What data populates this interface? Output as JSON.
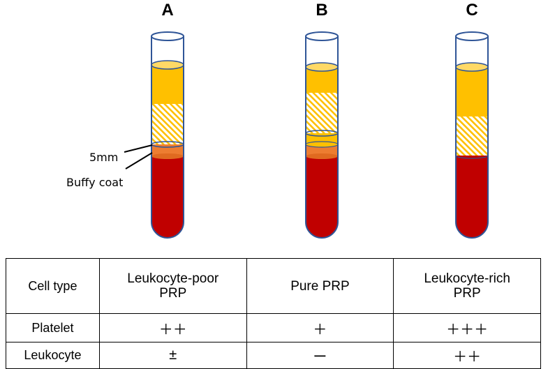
{
  "tubes": [
    {
      "label": "A",
      "layers": [
        "plasma",
        "platelet-hatched",
        "buffy-coat",
        "red-cells"
      ]
    },
    {
      "label": "B",
      "layers": [
        "plasma",
        "platelet-hatched",
        "plasma",
        "buffy-coat",
        "red-cells"
      ]
    },
    {
      "label": "C",
      "layers": [
        "plasma",
        "platelet-hatched",
        "red-cells"
      ]
    }
  ],
  "annotations": {
    "five_mm": "5mm",
    "buffy_coat": "Buffy coat"
  },
  "table": {
    "header_label": "Cell type",
    "columns": [
      {
        "line1": "Leukocyte-poor",
        "line2": "PRP"
      },
      {
        "line1": "Pure PRP",
        "line2": ""
      },
      {
        "line1": "Leukocyte-rich",
        "line2": "PRP"
      }
    ],
    "rows": [
      {
        "label": "Platelet",
        "values": [
          "＋＋",
          "＋",
          "＋＋＋"
        ]
      },
      {
        "label": "Leukocyte",
        "values": [
          "±",
          "ー",
          "＋＋"
        ]
      }
    ]
  },
  "colors": {
    "plasma": "#FFC000",
    "plasma_top": "#FFD966",
    "hatch_stripe": "#FFC000",
    "buffy_coat": "#ED7D31",
    "red_cells": "#C00000",
    "tube_outline": "#2F5597"
  }
}
